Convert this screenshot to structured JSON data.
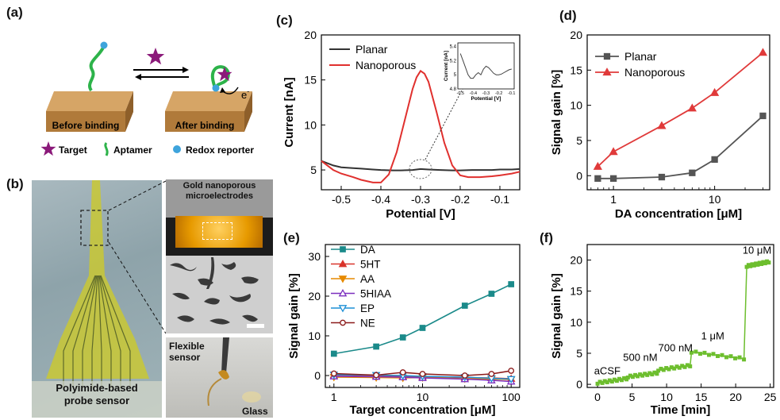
{
  "panels": {
    "a": {
      "label": "(a)",
      "before": "Before binding",
      "after": "After binding",
      "electron": "e",
      "electron_sup": "-",
      "legend": {
        "target": "Target",
        "aptamer": "Aptamer",
        "redox": "Redox reporter"
      },
      "colors": {
        "target": "#8B1A7A",
        "aptamer": "#2DB34A",
        "redox": "#3EA4DC",
        "substrate": "#C8924E"
      }
    },
    "b": {
      "label": "(b)",
      "caption_probe": "Polyimide-based\nprobe sensor",
      "caption_gold": "Gold nanoporous\nmicroelectrodes",
      "caption_flex": "Flexible\nsensor",
      "caption_glass": "Glass"
    },
    "c": {
      "label": "(c)"
    },
    "d": {
      "label": "(d)"
    },
    "e": {
      "label": "(e)"
    },
    "f": {
      "label": "(f)"
    }
  },
  "chart_data": [
    {
      "id": "c",
      "type": "line",
      "xlabel": "Potential [V]",
      "ylabel": "Current [nA]",
      "xlim": [
        -0.55,
        -0.05
      ],
      "ylim": [
        2.8,
        20
      ],
      "xticks": [
        -0.5,
        -0.4,
        -0.3,
        -0.2,
        -0.1
      ],
      "xtick_labels": [
        "-0.5",
        "-0.4",
        "-0.3",
        "-0.2",
        "-0.1"
      ],
      "yticks": [
        5,
        10,
        15,
        20
      ],
      "legend": "top-left",
      "series": [
        {
          "name": "Planar",
          "color": "#333333",
          "x": [
            -0.55,
            -0.52,
            -0.5,
            -0.47,
            -0.45,
            -0.42,
            -0.4,
            -0.37,
            -0.35,
            -0.32,
            -0.3,
            -0.28,
            -0.25,
            -0.22,
            -0.2,
            -0.17,
            -0.15,
            -0.12,
            -0.1,
            -0.07,
            -0.05
          ],
          "y": [
            6.0,
            5.5,
            5.3,
            5.2,
            5.15,
            5.05,
            5.0,
            4.95,
            4.95,
            5.0,
            5.1,
            5.05,
            5.0,
            4.95,
            4.95,
            5.0,
            5.0,
            5.0,
            5.05,
            5.05,
            5.1
          ]
        },
        {
          "name": "Nanoporous",
          "color": "#E0302E",
          "x": [
            -0.55,
            -0.52,
            -0.5,
            -0.47,
            -0.45,
            -0.42,
            -0.4,
            -0.38,
            -0.36,
            -0.34,
            -0.32,
            -0.31,
            -0.3,
            -0.29,
            -0.28,
            -0.26,
            -0.24,
            -0.22,
            -0.2,
            -0.18,
            -0.15,
            -0.12,
            -0.1,
            -0.07,
            -0.05
          ],
          "y": [
            6.0,
            5.0,
            4.6,
            4.2,
            3.9,
            3.6,
            3.6,
            4.5,
            7.0,
            10.5,
            14.0,
            15.3,
            16.0,
            15.7,
            14.8,
            11.5,
            8.0,
            5.5,
            4.4,
            4.2,
            4.2,
            4.3,
            4.4,
            4.6,
            4.8
          ]
        }
      ],
      "inset": {
        "xlabel": "Potential [V]",
        "ylabel": "Current [nA]",
        "xlim": [
          -0.52,
          -0.08
        ],
        "ylim": [
          4.8,
          5.45
        ],
        "xticks": [
          -0.5,
          -0.4,
          -0.3,
          -0.2,
          -0.1
        ],
        "xtick_labels": [
          "-0.5",
          "-0.4",
          "-0.3",
          "-0.2",
          "-0.1"
        ],
        "yticks": [
          4.8,
          5.0,
          5.2,
          5.4
        ],
        "ytick_labels": [
          "4.8",
          "5",
          "5.2",
          "5.4"
        ],
        "x": [
          -0.5,
          -0.48,
          -0.46,
          -0.44,
          -0.42,
          -0.4,
          -0.38,
          -0.36,
          -0.34,
          -0.32,
          -0.3,
          -0.28,
          -0.26,
          -0.24,
          -0.22,
          -0.2,
          -0.18,
          -0.16,
          -0.14,
          -0.12,
          -0.1
        ],
        "y": [
          5.3,
          5.2,
          5.1,
          5.0,
          4.95,
          4.95,
          5.0,
          5.03,
          5.0,
          5.08,
          5.12,
          5.1,
          5.06,
          5.02,
          5.0,
          5.0,
          5.01,
          5.03,
          5.05,
          5.07,
          5.08
        ]
      }
    },
    {
      "id": "d",
      "type": "line",
      "xlabel": "DA concentration [μM]",
      "ylabel": "Signal gain [%]",
      "xscale": "log",
      "xlim": [
        0.55,
        35
      ],
      "ylim": [
        -2,
        20
      ],
      "xticks": [
        1,
        10
      ],
      "xtick_labels": [
        "1",
        "10"
      ],
      "yticks": [
        0,
        5,
        10,
        15,
        20
      ],
      "legend": "top-left",
      "series": [
        {
          "name": "Planar",
          "color": "#555555",
          "marker": "square",
          "x": [
            0.7,
            1,
            3,
            6,
            10,
            30
          ],
          "y": [
            -0.4,
            -0.4,
            -0.2,
            0.4,
            2.3,
            8.5
          ]
        },
        {
          "name": "Nanoporous",
          "color": "#E03A3A",
          "marker": "triangle",
          "x": [
            0.7,
            1,
            3,
            6,
            10,
            30
          ],
          "y": [
            1.3,
            3.4,
            7.1,
            9.6,
            11.8,
            17.5
          ]
        }
      ]
    },
    {
      "id": "e",
      "type": "line",
      "xlabel": "Target concentration [μM]",
      "ylabel": "Signal gain [%]",
      "xscale": "log",
      "xlim": [
        0.8,
        125
      ],
      "ylim": [
        -3,
        33
      ],
      "xticks": [
        1,
        10,
        100
      ],
      "xtick_labels": [
        "1",
        "10",
        "100"
      ],
      "yticks": [
        0,
        10,
        20,
        30
      ],
      "legend": "top-left",
      "series": [
        {
          "name": "DA",
          "color": "#1B8A8A",
          "marker": "square",
          "fill": true,
          "x": [
            1,
            3,
            6,
            10,
            30,
            60,
            100
          ],
          "y": [
            5.5,
            7.3,
            9.6,
            12.0,
            17.6,
            20.6,
            23.0
          ]
        },
        {
          "name": "5HT",
          "color": "#D9342B",
          "marker": "triangle",
          "fill": true,
          "x": [
            1,
            3,
            6,
            10,
            30,
            60,
            100
          ],
          "y": [
            0.1,
            0.0,
            -0.2,
            -0.3,
            -0.5,
            -0.6,
            -0.8
          ]
        },
        {
          "name": "AA",
          "color": "#E68A00",
          "marker": "triangle-down",
          "fill": true,
          "x": [
            1,
            3,
            6,
            10,
            30,
            60,
            100
          ],
          "y": [
            -0.4,
            -0.5,
            -0.6,
            -0.5,
            -0.8,
            -0.9,
            -1.0
          ]
        },
        {
          "name": "5HIAA",
          "color": "#7B2FBE",
          "marker": "triangle",
          "fill": false,
          "x": [
            1,
            3,
            6,
            10,
            30,
            60,
            100
          ],
          "y": [
            -0.2,
            -0.3,
            -0.4,
            -0.6,
            -0.9,
            -1.2,
            -1.5
          ]
        },
        {
          "name": "EP",
          "color": "#1E90D6",
          "marker": "triangle-down",
          "fill": false,
          "x": [
            1,
            3,
            6,
            10,
            30,
            60,
            100
          ],
          "y": [
            0.2,
            0.1,
            0.0,
            -0.2,
            -0.4,
            -0.7,
            -0.9
          ]
        },
        {
          "name": "NE",
          "color": "#8B1A1A",
          "marker": "circle",
          "fill": false,
          "x": [
            1,
            3,
            6,
            10,
            30,
            60,
            100
          ],
          "y": [
            0.5,
            0.1,
            0.8,
            0.4,
            0.0,
            0.4,
            1.2
          ]
        }
      ]
    },
    {
      "id": "f",
      "type": "scatter",
      "xlabel": "Time [min]",
      "ylabel": "Signal gain [%]",
      "xlim": [
        -1.5,
        25.5
      ],
      "ylim": [
        -0.5,
        22.5
      ],
      "xticks": [
        0,
        5,
        10,
        15,
        20,
        25
      ],
      "yticks": [
        0,
        5,
        10,
        15,
        20
      ],
      "color": "#6DBE2E",
      "segments": [
        {
          "x0": 0,
          "x1": 4.2,
          "y0": 0.2,
          "y1": 0.9
        },
        {
          "x0": 4.4,
          "x1": 8.6,
          "y0": 1.2,
          "y1": 1.8
        },
        {
          "x0": 8.8,
          "x1": 13.4,
          "y0": 2.3,
          "y1": 3.0
        },
        {
          "x0": 13.6,
          "x1": 21.2,
          "y0": 5.2,
          "y1": 4.1
        },
        {
          "x0": 21.6,
          "x1": 24.8,
          "y0": 19.0,
          "y1": 19.7
        }
      ],
      "annotations": [
        {
          "text": "aCSF",
          "x": -0.5,
          "y": 1.6
        },
        {
          "text": "500 nM",
          "x": 3.7,
          "y": 3.8
        },
        {
          "text": "700 nM",
          "x": 8.8,
          "y": 5.3
        },
        {
          "text": "1 μM",
          "x": 15.0,
          "y": 7.2
        },
        {
          "text": "10 μM",
          "x": 21.0,
          "y": 21.0
        }
      ]
    }
  ]
}
